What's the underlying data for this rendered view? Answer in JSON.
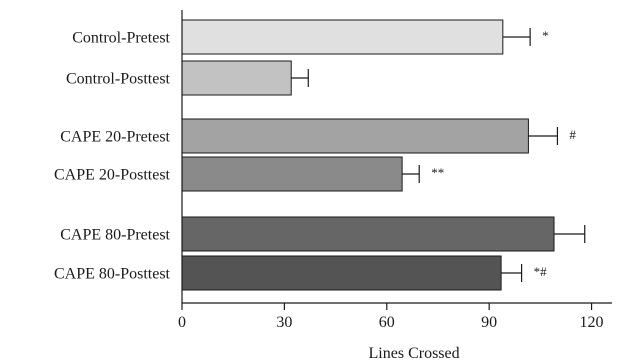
{
  "chart_data": {
    "type": "bar",
    "orientation": "horizontal",
    "categories": [
      "Control-Pretest",
      "Control-Posttest",
      "CAPE 20-Pretest",
      "CAPE 20-Posttest",
      "CAPE 80-Pretest",
      "CAPE 80-Posttest"
    ],
    "values": [
      94,
      32,
      101.5,
      64.5,
      109,
      93.5
    ],
    "errors": [
      8,
      5,
      8.5,
      5,
      9,
      6
    ],
    "annotations": [
      "*",
      "",
      "#",
      "**",
      "",
      "*#"
    ],
    "groups": [
      {
        "name": "Control",
        "members": [
          0,
          1
        ]
      },
      {
        "name": "CAPE 20",
        "members": [
          2,
          3
        ]
      },
      {
        "name": "CAPE 80",
        "members": [
          4,
          5
        ]
      }
    ],
    "bar_colors": [
      "#e0e0e0",
      "#c2c2c2",
      "#a3a3a3",
      "#8a8a8a",
      "#666666",
      "#545454"
    ],
    "xlabel": "Lines Crossed",
    "ylabel": "",
    "title": "",
    "xlim": [
      0,
      126
    ],
    "xticks": [
      0,
      30,
      60,
      90,
      120
    ],
    "grid": false
  }
}
